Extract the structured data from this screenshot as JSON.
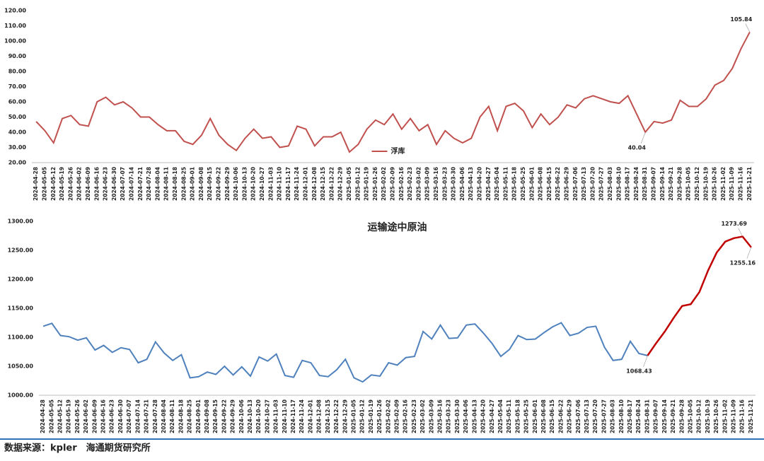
{
  "chart_data": [
    {
      "type": "line",
      "categories": [
        "2024-04-28",
        "2024-05-05",
        "2024-05-12",
        "2024-05-19",
        "2024-05-26",
        "2024-06-02",
        "2024-06-09",
        "2024-06-16",
        "2024-06-23",
        "2024-06-30",
        "2024-07-07",
        "2024-07-14",
        "2024-07-21",
        "2024-07-28",
        "2024-08-04",
        "2024-08-11",
        "2024-08-18",
        "2024-08-25",
        "2024-09-01",
        "2024-09-08",
        "2024-09-15",
        "2024-09-22",
        "2024-09-29",
        "2024-10-06",
        "2024-10-13",
        "2024-10-20",
        "2024-10-27",
        "2024-11-03",
        "2024-11-10",
        "2024-11-17",
        "2024-11-24",
        "2024-12-01",
        "2024-12-08",
        "2024-12-15",
        "2024-12-22",
        "2024-12-29",
        "2025-01-05",
        "2025-01-12",
        "2025-01-19",
        "2025-01-26",
        "2025-02-02",
        "2025-02-09",
        "2025-02-16",
        "2025-02-23",
        "2025-03-02",
        "2025-03-09",
        "2025-03-16",
        "2025-03-23",
        "2025-03-30",
        "2025-04-06",
        "2025-04-13",
        "2025-04-20",
        "2025-04-27",
        "2025-05-04",
        "2025-05-11",
        "2025-05-18",
        "2025-05-25",
        "2025-06-01",
        "2025-06-08",
        "2025-06-15",
        "2025-06-22",
        "2025-06-29",
        "2025-07-06",
        "2025-07-13",
        "2025-07-20",
        "2025-07-27",
        "2025-08-03",
        "2025-08-10",
        "2025-08-17",
        "2025-08-24",
        "2025-08-31",
        "2025-09-07",
        "2025-09-14",
        "2025-09-21",
        "2025-09-28",
        "2025-10-05",
        "2025-10-12",
        "2025-10-19",
        "2025-10-26",
        "2025-11-02",
        "2025-11-09",
        "2025-11-16",
        "2025-11-21"
      ],
      "series": [
        {
          "name": "浮库",
          "color": "#c0504d",
          "values": [
            47,
            41,
            33,
            49,
            51,
            45,
            44,
            60,
            63,
            58,
            60,
            56,
            50,
            50,
            45,
            41,
            41,
            34,
            32,
            38,
            49,
            38,
            32,
            28,
            36,
            42,
            36,
            37,
            30,
            31,
            44,
            42,
            31,
            37,
            37,
            40,
            27,
            32,
            42,
            48,
            45,
            52,
            42,
            49,
            41,
            45,
            32,
            41,
            36,
            33,
            36,
            50,
            57,
            41,
            57,
            59,
            54,
            43,
            52,
            45,
            50,
            58,
            56,
            62,
            64,
            62,
            60,
            59,
            64,
            52,
            40.04,
            47,
            46,
            48,
            61,
            57,
            57,
            62,
            71,
            74,
            82,
            95,
            105.84
          ],
          "labeled_points": [
            70,
            82
          ]
        }
      ],
      "ylim": [
        20,
        120
      ],
      "yticks": [
        {
          "value": 20,
          "label": "20.00"
        },
        {
          "value": 30,
          "label": "30.00"
        },
        {
          "value": 40,
          "label": "40.00"
        },
        {
          "value": 50,
          "label": "50.00"
        },
        {
          "value": 60,
          "label": "60.00"
        },
        {
          "value": 70,
          "label": "70.00"
        },
        {
          "value": 80,
          "label": "80.00"
        },
        {
          "value": 90,
          "label": "90.00"
        },
        {
          "value": 100,
          "label": "100.00"
        },
        {
          "value": 110,
          "label": "110.00"
        },
        {
          "value": 120,
          "label": "120.00"
        }
      ],
      "grid": false,
      "legend": "bottom-center"
    },
    {
      "type": "line",
      "title": "运输途中原油",
      "categories": [
        "2024-04-28",
        "2024-05-05",
        "2024-05-12",
        "2024-05-19",
        "2024-05-26",
        "2024-06-02",
        "2024-06-09",
        "2024-06-16",
        "2024-06-23",
        "2024-06-30",
        "2024-07-07",
        "2024-07-14",
        "2024-07-21",
        "2024-07-28",
        "2024-08-04",
        "2024-08-11",
        "2024-08-18",
        "2024-08-25",
        "2024-09-01",
        "2024-09-08",
        "2024-09-15",
        "2024-09-22",
        "2024-09-29",
        "2024-10-06",
        "2024-10-13",
        "2024-10-20",
        "2024-10-27",
        "2024-11-03",
        "2024-11-10",
        "2024-11-17",
        "2024-11-24",
        "2024-12-01",
        "2024-12-08",
        "2024-12-15",
        "2024-12-22",
        "2024-12-29",
        "2025-01-05",
        "2025-01-12",
        "2025-01-19",
        "2025-01-26",
        "2025-02-02",
        "2025-02-09",
        "2025-02-16",
        "2025-02-23",
        "2025-03-02",
        "2025-03-09",
        "2025-03-16",
        "2025-03-23",
        "2025-03-30",
        "2025-04-06",
        "2025-04-13",
        "2025-04-20",
        "2025-04-27",
        "2025-05-04",
        "2025-05-11",
        "2025-05-18",
        "2025-05-25",
        "2025-06-01",
        "2025-06-08",
        "2025-06-15",
        "2025-06-22",
        "2025-06-29",
        "2025-07-06",
        "2025-07-13",
        "2025-07-20",
        "2025-07-27",
        "2025-08-03",
        "2025-08-10",
        "2025-08-17",
        "2025-08-24",
        "2025-08-31",
        "2025-09-07",
        "2025-09-14",
        "2025-09-21",
        "2025-09-28",
        "2025-10-05",
        "2025-10-12",
        "2025-10-19",
        "2025-10-26",
        "2025-11-02",
        "2025-11-09",
        "2025-11-16",
        "2025-11-21"
      ],
      "series": [
        {
          "color": "#4f81bd",
          "values": [
            1119,
            1124,
            1103,
            1101,
            1095,
            1099,
            1078,
            1086,
            1074,
            1082,
            1079,
            1056,
            1062,
            1092,
            1073,
            1060,
            1070,
            1030,
            1032,
            1040,
            1036,
            1050,
            1035,
            1049,
            1033,
            1066,
            1059,
            1071,
            1034,
            1031,
            1060,
            1056,
            1034,
            1032,
            1044,
            1062,
            1030,
            1023,
            1035,
            1033,
            1056,
            1052,
            1065,
            1067,
            1110,
            1097,
            1121,
            1098,
            1099,
            1121,
            1123,
            1107,
            1089,
            1067,
            1079,
            1103,
            1096,
            1097,
            1108,
            1118,
            1125,
            1103,
            1107,
            1117,
            1119,
            1083,
            1060,
            1062,
            1093,
            1072,
            1068.43,
            null,
            null,
            null,
            null,
            null,
            null,
            null,
            null,
            null,
            null,
            null,
            null
          ],
          "labeled_points": [
            70
          ]
        },
        {
          "color": "#c00000",
          "values": [
            null,
            null,
            null,
            null,
            null,
            null,
            null,
            null,
            null,
            null,
            null,
            null,
            null,
            null,
            null,
            null,
            null,
            null,
            null,
            null,
            null,
            null,
            null,
            null,
            null,
            null,
            null,
            null,
            null,
            null,
            null,
            null,
            null,
            null,
            null,
            null,
            null,
            null,
            null,
            null,
            null,
            null,
            null,
            null,
            null,
            null,
            null,
            null,
            null,
            null,
            null,
            null,
            null,
            null,
            null,
            null,
            null,
            null,
            null,
            null,
            null,
            null,
            null,
            null,
            null,
            null,
            null,
            null,
            null,
            null,
            1068.43,
            1090,
            1110,
            1133,
            1154,
            1157,
            1178,
            1215,
            1246,
            1265,
            1271,
            1273.69,
            1255.16
          ],
          "labeled_points": [
            81,
            82
          ]
        }
      ],
      "ylim": [
        1000,
        1300
      ],
      "yticks": [
        {
          "value": 1000,
          "label": "1000.00"
        },
        {
          "value": 1050,
          "label": "1050.00"
        },
        {
          "value": 1100,
          "label": "1100.00"
        },
        {
          "value": 1150,
          "label": "1150.00"
        },
        {
          "value": 1200,
          "label": "1200.00"
        },
        {
          "value": 1250,
          "label": "1250.00"
        },
        {
          "value": 1300,
          "label": "1300.00"
        }
      ],
      "grid": false
    }
  ],
  "source": "数据来源：kpler　海通期货研究所"
}
